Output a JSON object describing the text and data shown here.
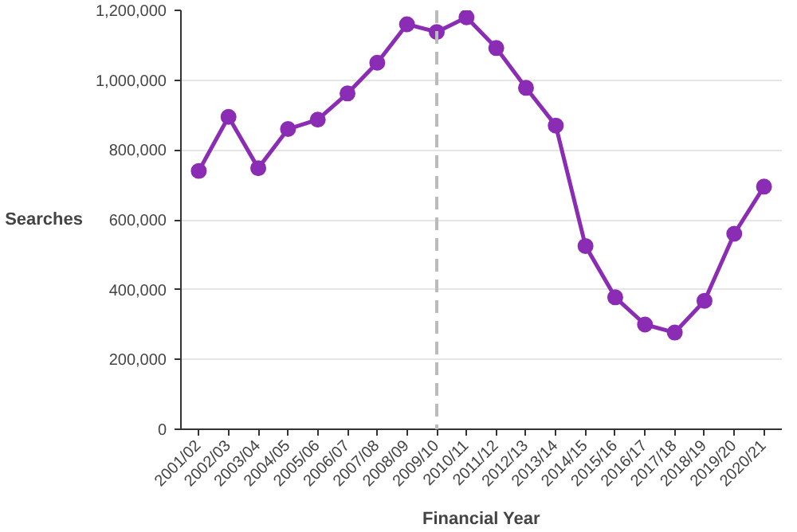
{
  "chart_data": {
    "type": "line",
    "xlabel": "Financial Year",
    "ylabel": "Searches",
    "categories": [
      "2001/02",
      "2002/03",
      "2003/04",
      "2004/05",
      "2005/06",
      "2006/07",
      "2007/08",
      "2008/09",
      "2009/10",
      "2010/11",
      "2011/12",
      "2012/13",
      "2013/14",
      "2014/15",
      "2015/16",
      "2016/17",
      "2017/18",
      "2018/19",
      "2019/20",
      "2020/21"
    ],
    "series": [
      {
        "color": "#8b2cb5",
        "values": [
          740000,
          895000,
          748000,
          860000,
          887000,
          962000,
          1050000,
          1160000,
          1138000,
          1180000,
          1092000,
          978000,
          870000,
          525000,
          378000,
          300000,
          277000,
          368000,
          560000,
          695000
        ]
      }
    ],
    "ylim": [
      0,
      1200000
    ],
    "yticks": [
      {
        "value": 0,
        "label": "0"
      },
      {
        "value": 200000,
        "label": "200,000"
      },
      {
        "value": 400000,
        "label": "400,000"
      },
      {
        "value": 600000,
        "label": "600,000"
      },
      {
        "value": 800000,
        "label": "800,000"
      },
      {
        "value": 1000000,
        "label": "1,000,000"
      },
      {
        "value": 1200000,
        "label": "1,200,000"
      }
    ],
    "grid": "y",
    "marker": "circle",
    "line_style": "solid",
    "ref_lines": [
      {
        "axis": "x",
        "value": "2009/10",
        "color": "#bbbbbb",
        "line_style": "dashed"
      }
    ]
  }
}
